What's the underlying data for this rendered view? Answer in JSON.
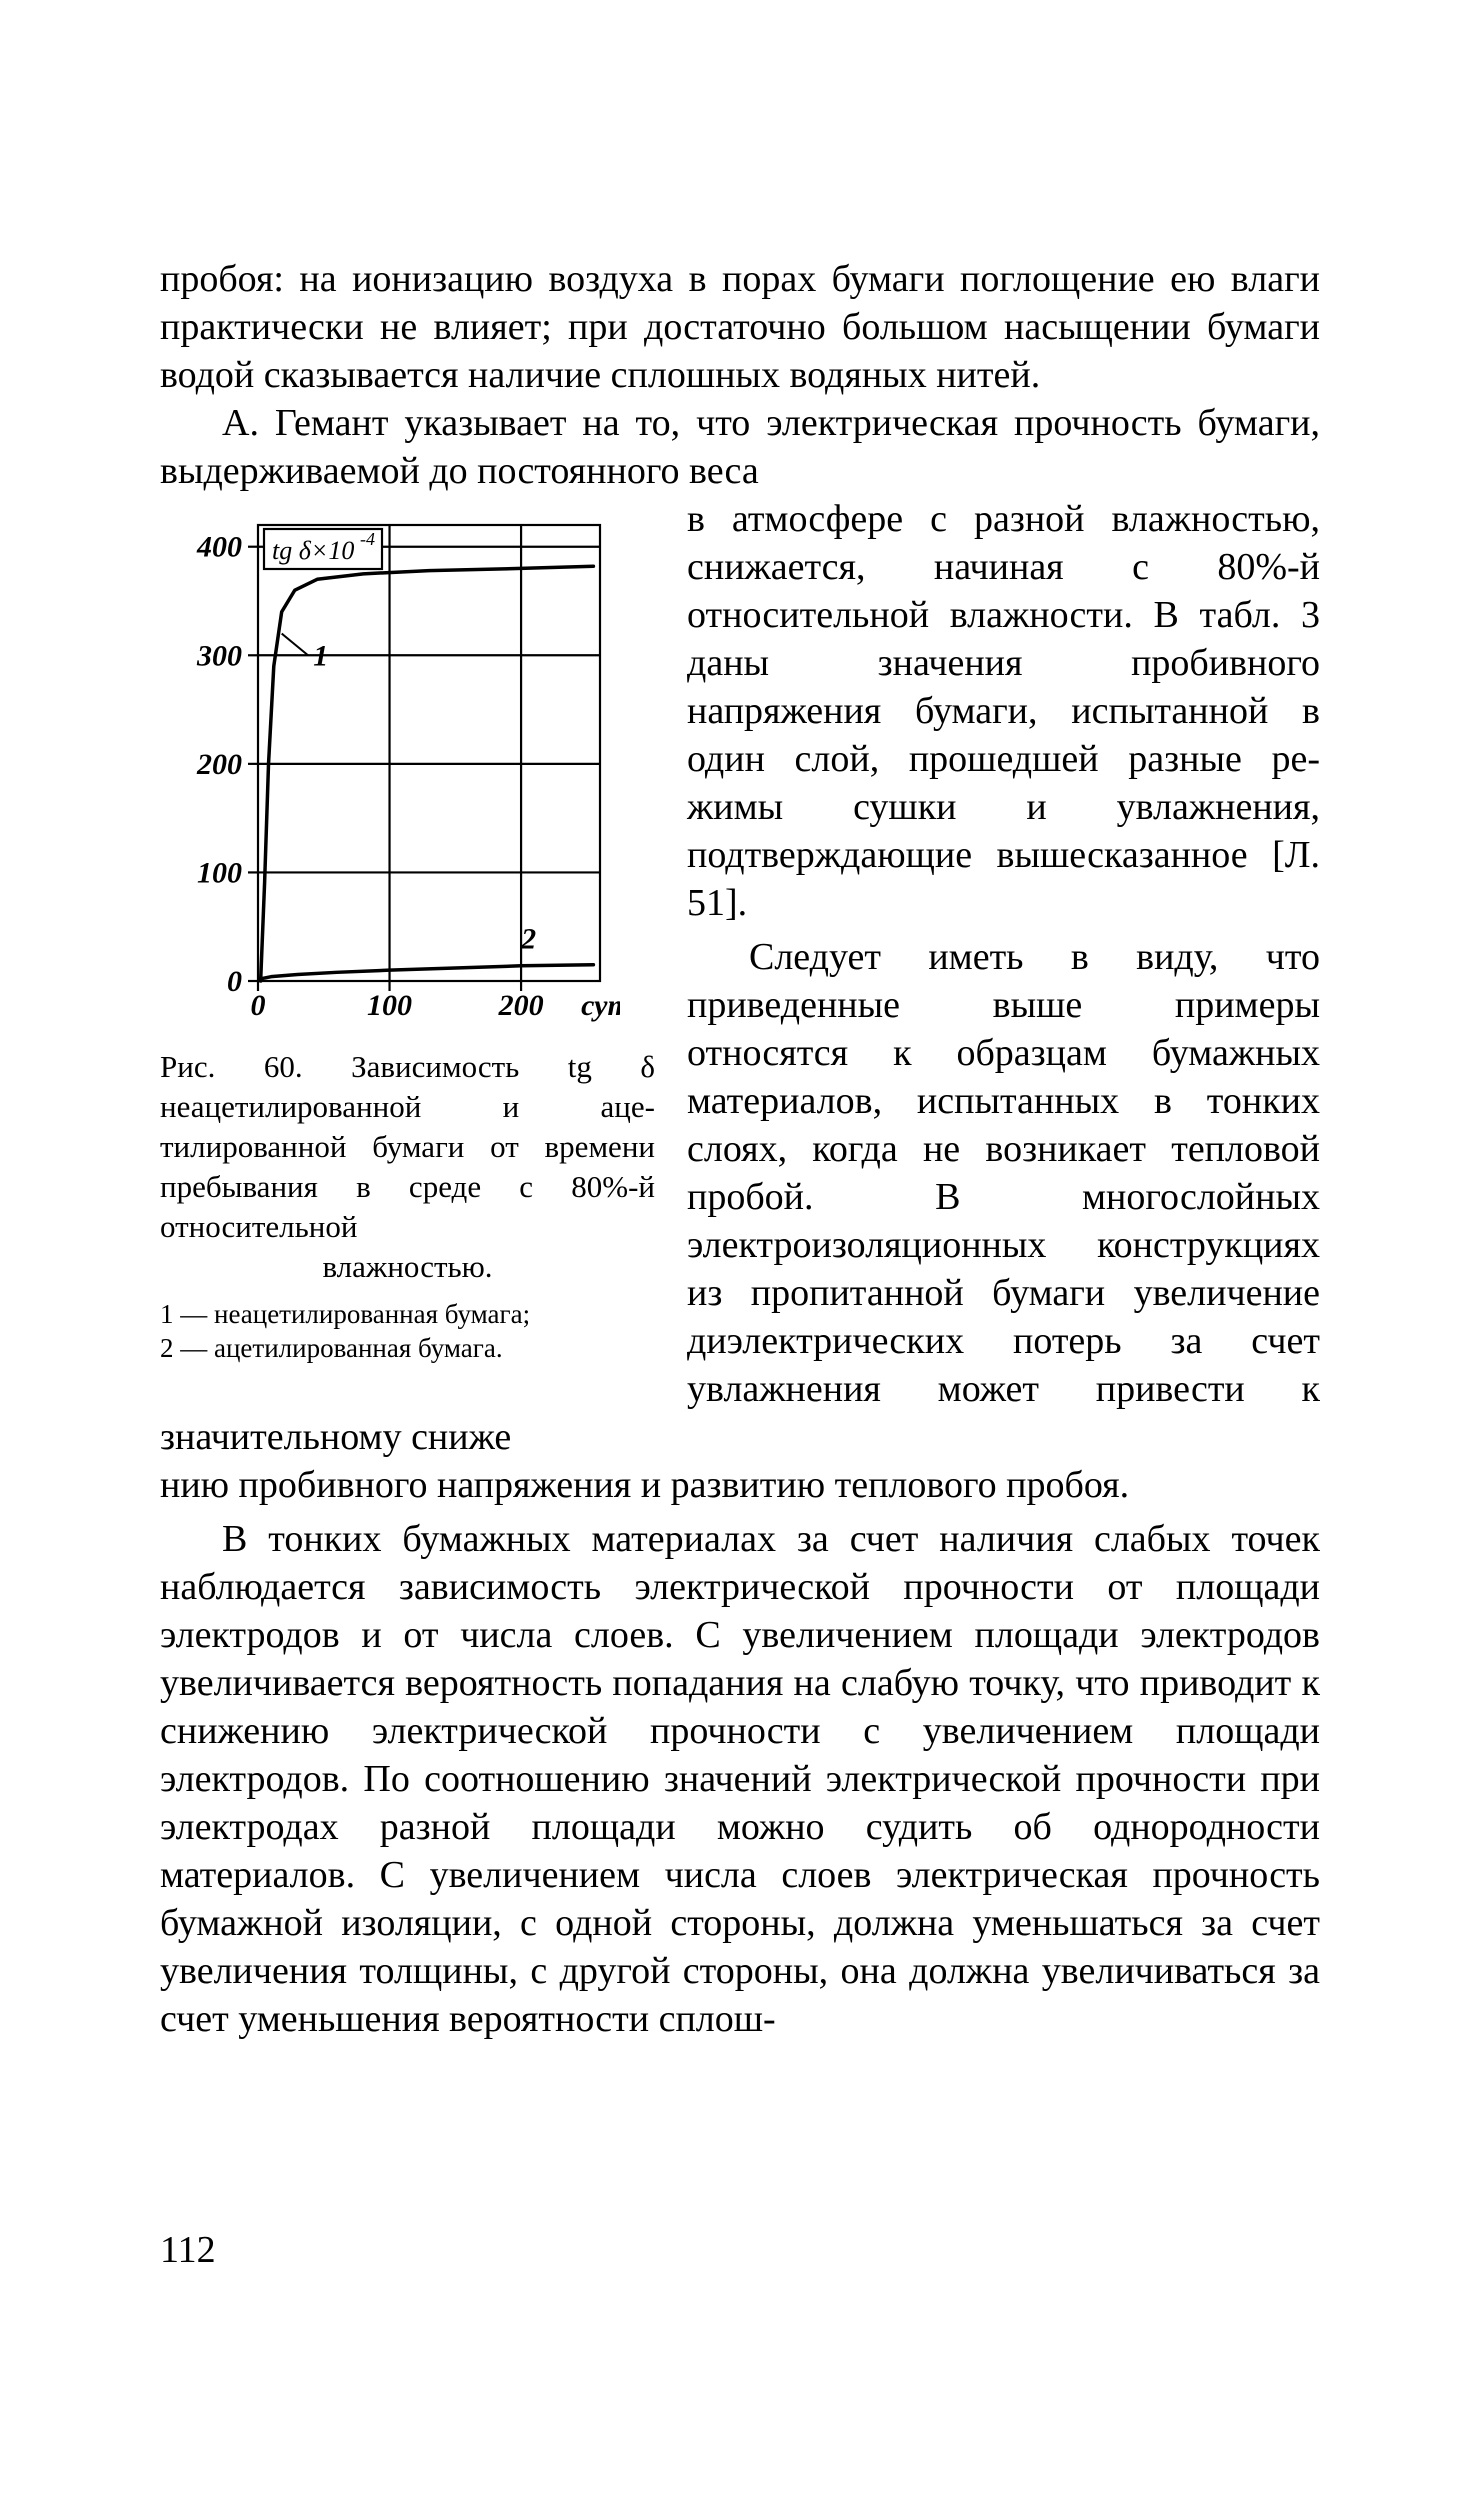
{
  "para1": "пробоя: на ионизацию воздуха в порах бумаги поглоще­ние ею влаги практически не влияет; при достаточно большом насыщении бумаги водой сказывается наличие сплошных водяных нитей.",
  "para2_lead": "А. Гемант указывает на то, что электрическая проч­ность бумаги, выдерживаемой до постоянного веса",
  "para2_rest": "в атмосфере с разной влаж­ностью, снижается, начиная с 80%-й относительной влаж­ности. В табл. 3 даны значе­ния пробивного напряжения бумаги, испытанной в один слой, прошедшей разные ре­жимы сушки и увлажнения, подтверждающие вышесказан­ное [Л. 51].",
  "para3_wrap": "Следует иметь в виду, что приведенные выше примеры относятся к образцам бумаж­ных материалов, испытанных в тонких слоях, когда не воз­никает тепловой пробой. В многослойных электроизоля­ционных конструкциях из про­питанной бумаги увеличение диэлектрических потерь за счет увлажнения может при­вести к значительному сниже­",
  "para3_end": "нию пробивного напряжения и развитию теплового про­боя.",
  "para4": "В тонких бумажных материалах за счет наличия сла­бых точек наблюдается зависимость электрической прочности от площади электродов и от числа слоев. С увеличением площади электродов увеличивается ве­роятность попадания на слабую точку, что приводит к снижению электрической прочности с увеличением площади электродов. По соотношению значений элек­трической прочности при электродах разной площади можно судить об однородности материалов. С увеличе­нием числа слоев электрическая прочность бумажной изоляции, с одной стороны, должна уменьшаться за счет увеличения толщины, с другой стороны, она должна увеличиваться за счет уменьшения вероятности сплош-",
  "caption": "Рис. 60. Зависимость tg δ неацетилированной и аце­тилированной бумаги от времени пребывания в сре­де с 80%-й относительной",
  "caption_last": "влажностью.",
  "legend1": "1 — неацетилированная бумага;",
  "legend2": "2 — ацетилированная бумага.",
  "page_number": "112",
  "chart": {
    "type": "line",
    "x_range": [
      0,
      260
    ],
    "y_range": [
      0,
      420
    ],
    "x_ticks": [
      0,
      100,
      200
    ],
    "y_ticks": [
      0,
      100,
      200,
      300,
      400
    ],
    "x_unit_label": "сутки",
    "y_axis_box_label": "tg δ × 10⁻⁴",
    "curve1_label": "1",
    "curve2_label": "2",
    "grid_color": "#000000",
    "background_color": "#ffffff",
    "line_color": "#000000",
    "line_width": 3.5,
    "axis_width": 2.2,
    "font_family": "Times New Roman",
    "tick_fontsize_px": 30,
    "curve1": [
      [
        2,
        0
      ],
      [
        5,
        90
      ],
      [
        8,
        200
      ],
      [
        12,
        290
      ],
      [
        18,
        340
      ],
      [
        28,
        360
      ],
      [
        45,
        370
      ],
      [
        80,
        375
      ],
      [
        130,
        378
      ],
      [
        200,
        380
      ],
      [
        255,
        382
      ]
    ],
    "curve2": [
      [
        2,
        2
      ],
      [
        10,
        4
      ],
      [
        30,
        6
      ],
      [
        60,
        8
      ],
      [
        100,
        10
      ],
      [
        150,
        12
      ],
      [
        200,
        14
      ],
      [
        255,
        15
      ]
    ]
  }
}
